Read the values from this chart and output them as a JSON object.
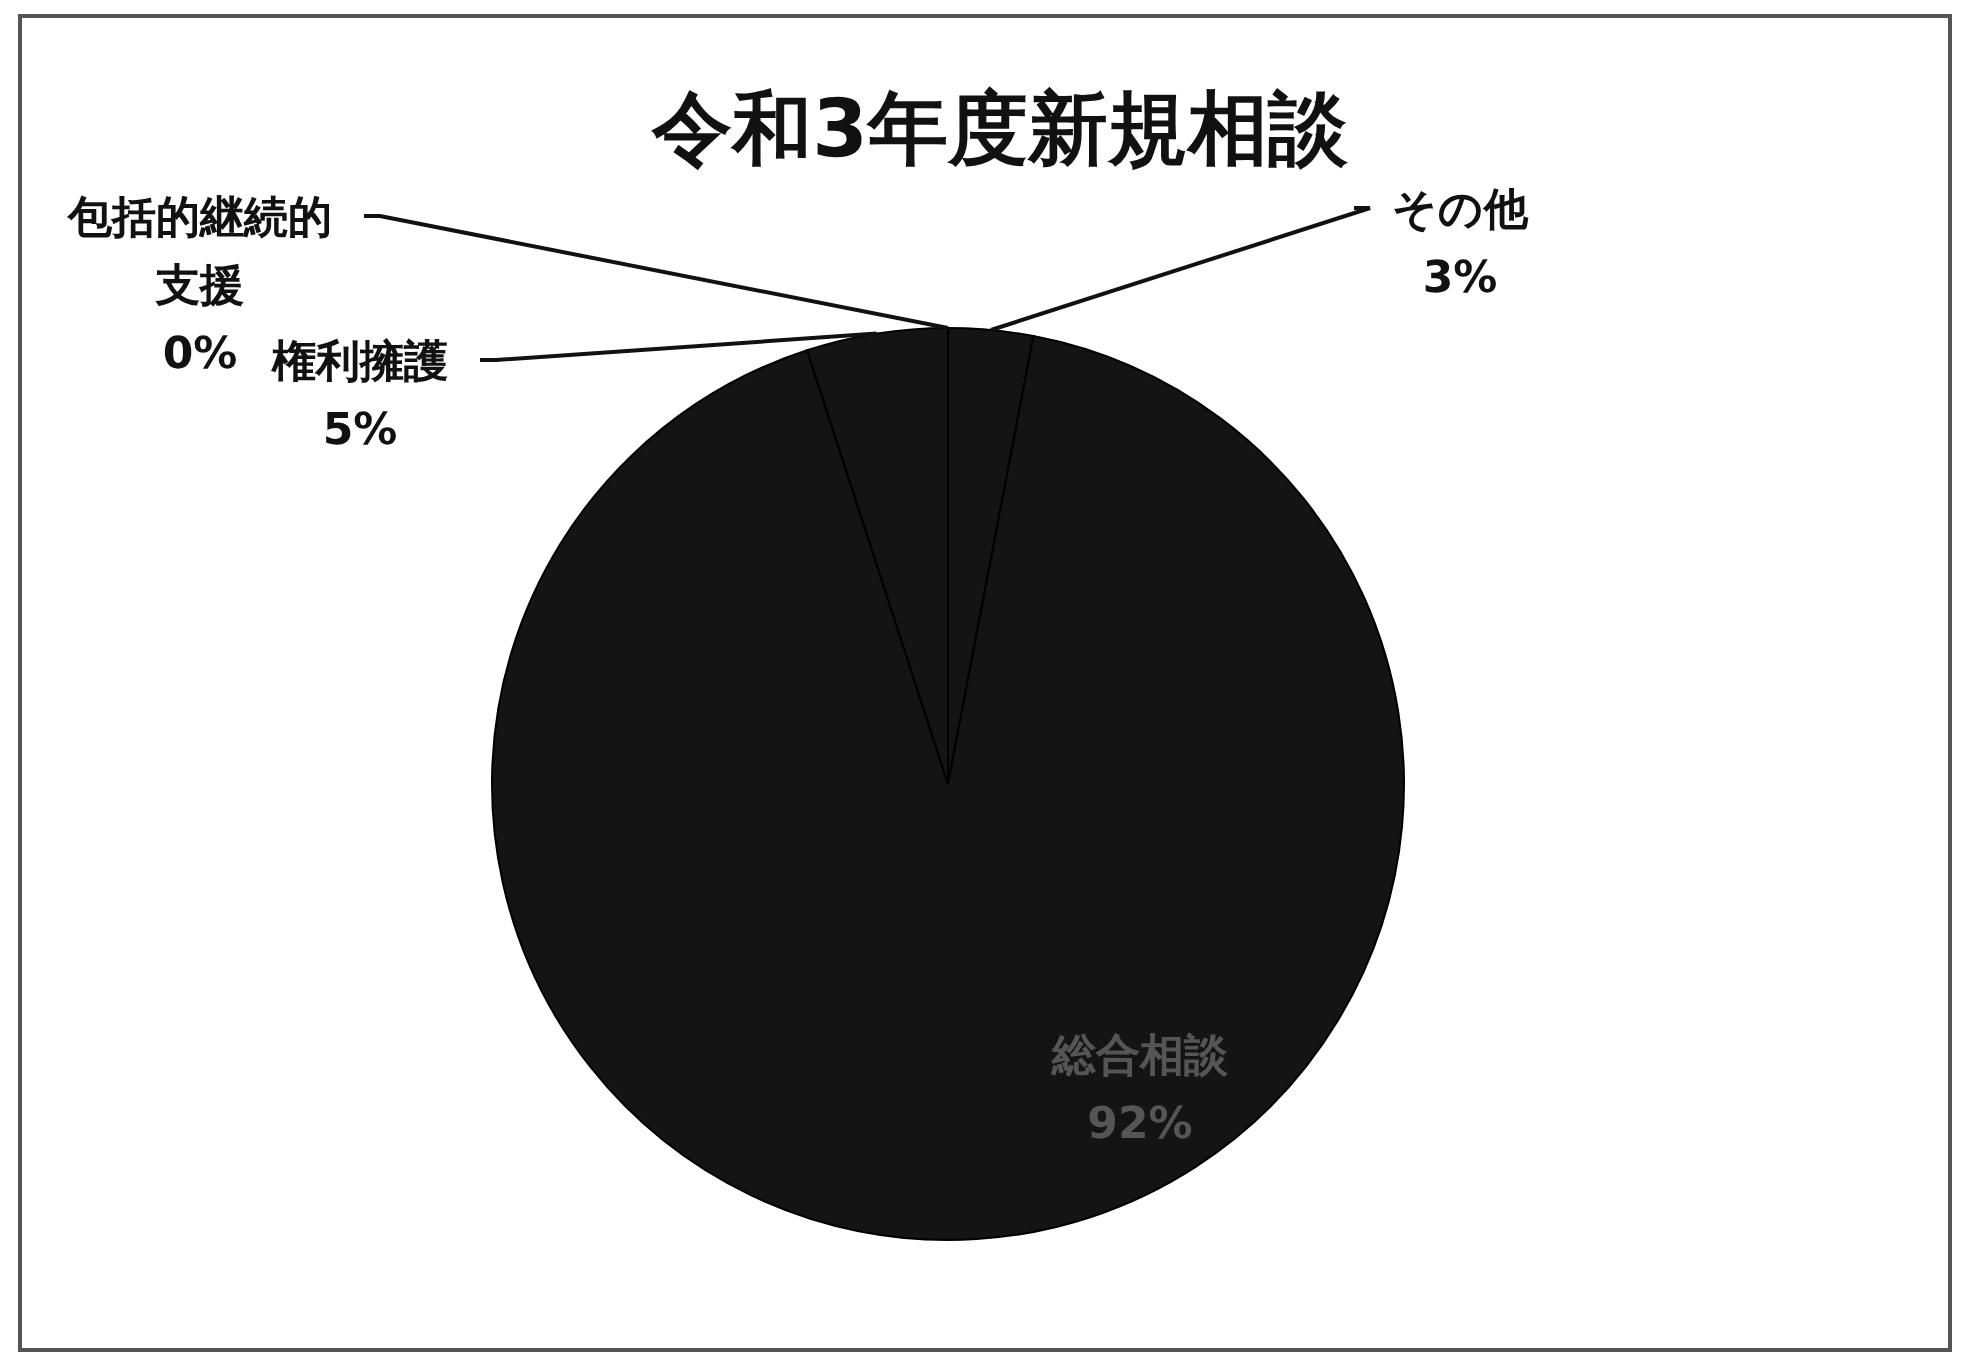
{
  "chart_data": {
    "type": "pie",
    "title": "令和3年度新規相談",
    "categories": [
      "その他",
      "総合相談",
      "権利擁護",
      "包括的継続的支援"
    ],
    "values": [
      3,
      92,
      5,
      0
    ],
    "value_labels": [
      "3%",
      "92%",
      "5%",
      "0%"
    ],
    "colors": [
      "#141414",
      "#141414",
      "#141414",
      "#141414"
    ]
  }
}
